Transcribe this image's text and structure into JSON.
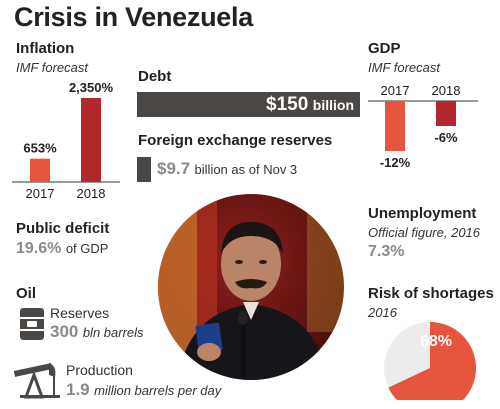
{
  "title": "Crisis in Venezuela",
  "colors": {
    "accent_red": "#e8553e",
    "dark_red": "#b3282c",
    "bar_gray": "#4a4744",
    "text_gray": "#8a8a8a",
    "pie_light": "#ececec"
  },
  "inflation": {
    "heading": "Inflation",
    "subheading": "IMF forecast"
  },
  "gdp": {
    "heading": "GDP",
    "subheading": "IMF forecast"
  },
  "debt": {
    "heading": "Debt",
    "value": "$150",
    "unit": "billion"
  },
  "reserves_fx": {
    "heading": "Foreign exchange reserves",
    "value": "$9.7",
    "unit": "billion as of Nov 3"
  },
  "deficit": {
    "heading": "Public deficit",
    "value": "19.6%",
    "unit": "of GDP"
  },
  "unemployment": {
    "heading": "Unemployment",
    "subheading": "Official figure, 2016",
    "value": "7.3%"
  },
  "oil": {
    "heading": "Oil",
    "reserves": {
      "label": "Reserves",
      "value": "300",
      "unit": "bln barrels",
      "icon": "oil-barrel-icon"
    },
    "production": {
      "label": "Production",
      "value": "1.9",
      "unit": "million barrels per day",
      "icon": "oil-pump-icon"
    }
  },
  "shortages": {
    "heading": "Risk of shortages",
    "subheading": "2016"
  },
  "photo": {
    "icon": "portrait-photo"
  },
  "chart_data": [
    {
      "type": "bar",
      "name": "inflation",
      "categories": [
        "2017",
        "2018"
      ],
      "values": [
        653,
        2350
      ],
      "value_labels": [
        "653%",
        "2,350%"
      ],
      "colors": [
        "#e8553e",
        "#b3282c"
      ]
    },
    {
      "type": "bar",
      "name": "gdp",
      "categories": [
        "2017",
        "2018"
      ],
      "values": [
        -12,
        -6
      ],
      "value_labels": [
        "-12%",
        "-6%"
      ],
      "colors": [
        "#e8553e",
        "#b3282c"
      ]
    },
    {
      "type": "bar",
      "name": "debt",
      "values": [
        150
      ],
      "max": 150
    },
    {
      "type": "bar",
      "name": "fx_reserves",
      "values": [
        9.7
      ],
      "max": 150
    },
    {
      "type": "pie",
      "name": "shortages",
      "values": [
        68,
        32
      ],
      "value_labels": [
        "68%"
      ],
      "colors": [
        "#e8553e",
        "#ececec"
      ]
    }
  ]
}
